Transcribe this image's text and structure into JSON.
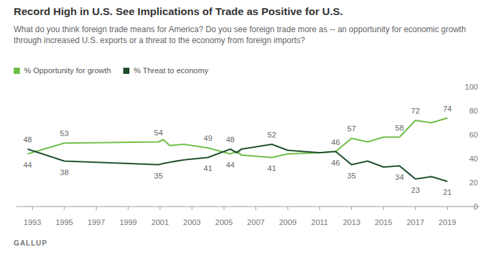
{
  "chart_data": {
    "type": "line",
    "title": "Record High in U.S. See Implications of Trade as Positive for U.S.",
    "subtitle": "What do you think foreign trade means for America? Do you see foreign trade more as -- an opportunity for economic growth through increased U.S. exports or a threat to the economy from foreign imports?",
    "footer": "GALLUP",
    "x": [
      1992.7,
      1995,
      2000.9,
      2001.2,
      2001.6,
      2002.5,
      2004,
      2005.4,
      2005.8,
      2006.1,
      2008,
      2009,
      2011,
      2012,
      2013,
      2014,
      2015,
      2016,
      2017,
      2018,
      2019
    ],
    "xlim": [
      1992,
      2021
    ],
    "xticks": [
      1993,
      1995,
      1997,
      1999,
      2001,
      2003,
      2005,
      2007,
      2009,
      2011,
      2013,
      2015,
      2017,
      2019
    ],
    "ylim": [
      0,
      100
    ],
    "yticks": [
      0,
      20,
      40,
      60,
      80,
      100
    ],
    "grid": false,
    "legend": "top-left",
    "data_labels": true,
    "series": [
      {
        "name": "% Opportunity for growth",
        "color": "#6dbe45",
        "values": [
          44,
          53,
          54,
          56,
          51,
          52,
          49,
          44,
          46,
          43,
          41,
          44,
          45,
          46,
          57,
          54,
          58,
          58,
          72,
          70,
          74
        ],
        "value_labels": [
          "44",
          "53",
          "54",
          null,
          null,
          null,
          "49",
          "44",
          null,
          null,
          "41",
          null,
          null,
          "46",
          "57",
          null,
          null,
          "58",
          "72",
          null,
          "74"
        ]
      },
      {
        "name": "% Threat to economy",
        "color": "#1f4e2c",
        "values": [
          48,
          38,
          35,
          36,
          37,
          39,
          41,
          48,
          45,
          48,
          52,
          47,
          45,
          46,
          35,
          38,
          33,
          34,
          23,
          25,
          21
        ],
        "value_labels": [
          "48",
          "38",
          "35",
          null,
          null,
          null,
          "41",
          "48",
          null,
          null,
          "52",
          null,
          null,
          "46",
          "35",
          null,
          null,
          "34",
          "23",
          null,
          "21"
        ]
      }
    ]
  }
}
